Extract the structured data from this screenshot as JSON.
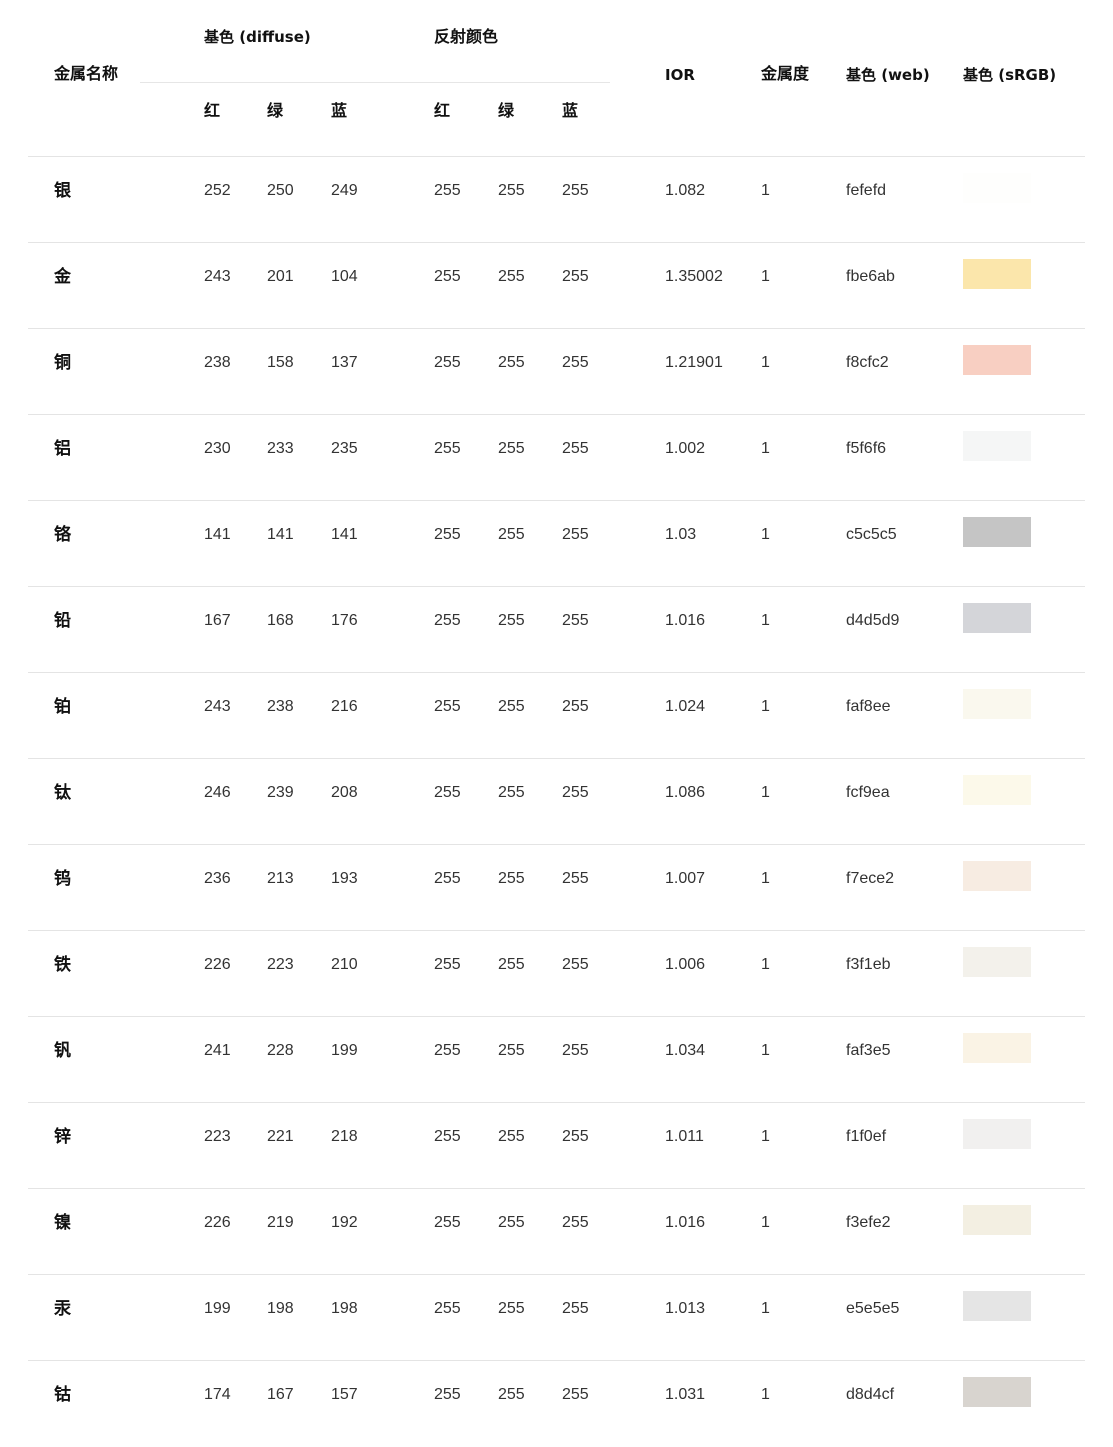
{
  "headers": {
    "metal_name": "金属名称",
    "diffuse_group": "基色 (diffuse)",
    "reflect_group": "反射颜色",
    "r": "红",
    "g": "绿",
    "b": "蓝",
    "ior": "IOR",
    "metallic": "金属度",
    "web": "基色 (web)",
    "srgb": "基色 (sRGB)"
  },
  "rows": [
    {
      "name": "银",
      "dr": "252",
      "dg": "250",
      "db": "249",
      "rr": "255",
      "rg": "255",
      "rb": "255",
      "ior": "1.082",
      "metal": "1",
      "web": "fefefd",
      "color": "#fefefd"
    },
    {
      "name": "金",
      "dr": "243",
      "dg": "201",
      "db": "104",
      "rr": "255",
      "rg": "255",
      "rb": "255",
      "ior": "1.35002",
      "metal": "1",
      "web": "fbe6ab",
      "color": "#fbe6ab"
    },
    {
      "name": "铜",
      "dr": "238",
      "dg": "158",
      "db": "137",
      "rr": "255",
      "rg": "255",
      "rb": "255",
      "ior": "1.21901",
      "metal": "1",
      "web": "f8cfc2",
      "color": "#f8cfc2"
    },
    {
      "name": "铝",
      "dr": "230",
      "dg": "233",
      "db": "235",
      "rr": "255",
      "rg": "255",
      "rb": "255",
      "ior": "1.002",
      "metal": "1",
      "web": "f5f6f6",
      "color": "#f5f6f6"
    },
    {
      "name": "铬",
      "dr": "141",
      "dg": "141",
      "db": "141",
      "rr": "255",
      "rg": "255",
      "rb": "255",
      "ior": "1.03",
      "metal": "1",
      "web": "c5c5c5",
      "color": "#c5c5c5"
    },
    {
      "name": "铅",
      "dr": "167",
      "dg": "168",
      "db": "176",
      "rr": "255",
      "rg": "255",
      "rb": "255",
      "ior": "1.016",
      "metal": "1",
      "web": "d4d5d9",
      "color": "#d4d5d9"
    },
    {
      "name": "铂",
      "dr": "243",
      "dg": "238",
      "db": "216",
      "rr": "255",
      "rg": "255",
      "rb": "255",
      "ior": "1.024",
      "metal": "1",
      "web": "faf8ee",
      "color": "#faf8ee"
    },
    {
      "name": "钛",
      "dr": "246",
      "dg": "239",
      "db": "208",
      "rr": "255",
      "rg": "255",
      "rb": "255",
      "ior": "1.086",
      "metal": "1",
      "web": "fcf9ea",
      "color": "#fcf9ea"
    },
    {
      "name": "钨",
      "dr": "236",
      "dg": "213",
      "db": "193",
      "rr": "255",
      "rg": "255",
      "rb": "255",
      "ior": "1.007",
      "metal": "1",
      "web": "f7ece2",
      "color": "#f7ece2"
    },
    {
      "name": "铁",
      "dr": "226",
      "dg": "223",
      "db": "210",
      "rr": "255",
      "rg": "255",
      "rb": "255",
      "ior": "1.006",
      "metal": "1",
      "web": "f3f1eb",
      "color": "#f3f1eb"
    },
    {
      "name": "钒",
      "dr": "241",
      "dg": "228",
      "db": "199",
      "rr": "255",
      "rg": "255",
      "rb": "255",
      "ior": "1.034",
      "metal": "1",
      "web": "faf3e5",
      "color": "#faf3e5"
    },
    {
      "name": "锌",
      "dr": "223",
      "dg": "221",
      "db": "218",
      "rr": "255",
      "rg": "255",
      "rb": "255",
      "ior": "1.011",
      "metal": "1",
      "web": "f1f0ef",
      "color": "#f1f0ef"
    },
    {
      "name": "镍",
      "dr": "226",
      "dg": "219",
      "db": "192",
      "rr": "255",
      "rg": "255",
      "rb": "255",
      "ior": "1.016",
      "metal": "1",
      "web": "f3efe2",
      "color": "#f3efe2"
    },
    {
      "name": "汞",
      "dr": "199",
      "dg": "198",
      "db": "198",
      "rr": "255",
      "rg": "255",
      "rb": "255",
      "ior": "1.013",
      "metal": "1",
      "web": "e5e5e5",
      "color": "#e5e5e5"
    },
    {
      "name": "钴",
      "dr": "174",
      "dg": "167",
      "db": "157",
      "rr": "255",
      "rg": "255",
      "rb": "255",
      "ior": "1.031",
      "metal": "1",
      "web": "d8d4cf",
      "color": "#d8d4cf"
    }
  ]
}
